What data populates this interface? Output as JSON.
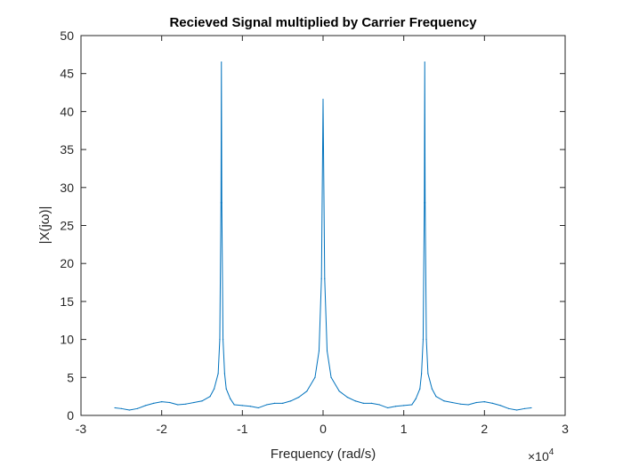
{
  "chart_data": {
    "type": "line",
    "title": "Recieved Signal multiplied by Carrier Frequency",
    "xlabel": "Frequency (rad/s)",
    "ylabel": "|X(jω)|",
    "x_exponent_base": "×10",
    "x_exponent_power": "4",
    "xlim": [
      -3,
      3
    ],
    "ylim": [
      0,
      50
    ],
    "x_ticks": [
      -3,
      -2,
      -1,
      0,
      1,
      2,
      3
    ],
    "x_tick_labels": [
      "-3",
      "-2",
      "-1",
      "0",
      "1",
      "2",
      "3"
    ],
    "y_ticks": [
      0,
      5,
      10,
      15,
      20,
      25,
      30,
      35,
      40,
      45,
      50
    ],
    "y_tick_labels": [
      "0",
      "5",
      "10",
      "15",
      "20",
      "25",
      "30",
      "35",
      "40",
      "45",
      "50"
    ],
    "grid": false,
    "line_color": "#0072BD",
    "series": [
      {
        "x": [
          -2.58,
          -2.5,
          -2.4,
          -2.3,
          -2.2,
          -2.1,
          -2.0,
          -1.9,
          -1.8,
          -1.7,
          -1.6,
          -1.5,
          -1.4,
          -1.35,
          -1.3,
          -1.28,
          -1.265,
          -1.26,
          -1.255,
          -1.24,
          -1.22,
          -1.2,
          -1.15,
          -1.1,
          -1.0,
          -0.9,
          -0.8,
          -0.7,
          -0.6,
          -0.5,
          -0.4,
          -0.3,
          -0.2,
          -0.1,
          -0.05,
          -0.02,
          0.0,
          0.02,
          0.05,
          0.1,
          0.2,
          0.3,
          0.4,
          0.5,
          0.6,
          0.7,
          0.8,
          0.9,
          1.0,
          1.1,
          1.15,
          1.2,
          1.22,
          1.24,
          1.255,
          1.26,
          1.265,
          1.28,
          1.3,
          1.35,
          1.4,
          1.5,
          1.6,
          1.7,
          1.8,
          1.9,
          2.0,
          2.1,
          2.2,
          2.3,
          2.4,
          2.5,
          2.58
        ],
        "y": [
          1.0,
          0.9,
          0.7,
          0.9,
          1.3,
          1.6,
          1.8,
          1.7,
          1.4,
          1.5,
          1.7,
          1.9,
          2.5,
          3.5,
          5.5,
          10.0,
          28.0,
          46.5,
          28.0,
          10.0,
          5.5,
          3.5,
          2.2,
          1.4,
          1.3,
          1.2,
          1.0,
          1.4,
          1.6,
          1.6,
          1.9,
          2.4,
          3.2,
          5.0,
          8.5,
          18.0,
          41.6,
          18.0,
          8.5,
          5.0,
          3.2,
          2.4,
          1.9,
          1.6,
          1.6,
          1.4,
          1.0,
          1.2,
          1.3,
          1.4,
          2.2,
          3.5,
          5.5,
          10.0,
          28.0,
          46.5,
          28.0,
          10.0,
          5.5,
          3.5,
          2.5,
          1.9,
          1.7,
          1.5,
          1.4,
          1.7,
          1.8,
          1.6,
          1.3,
          0.9,
          0.7,
          0.9,
          1.0
        ]
      }
    ]
  }
}
